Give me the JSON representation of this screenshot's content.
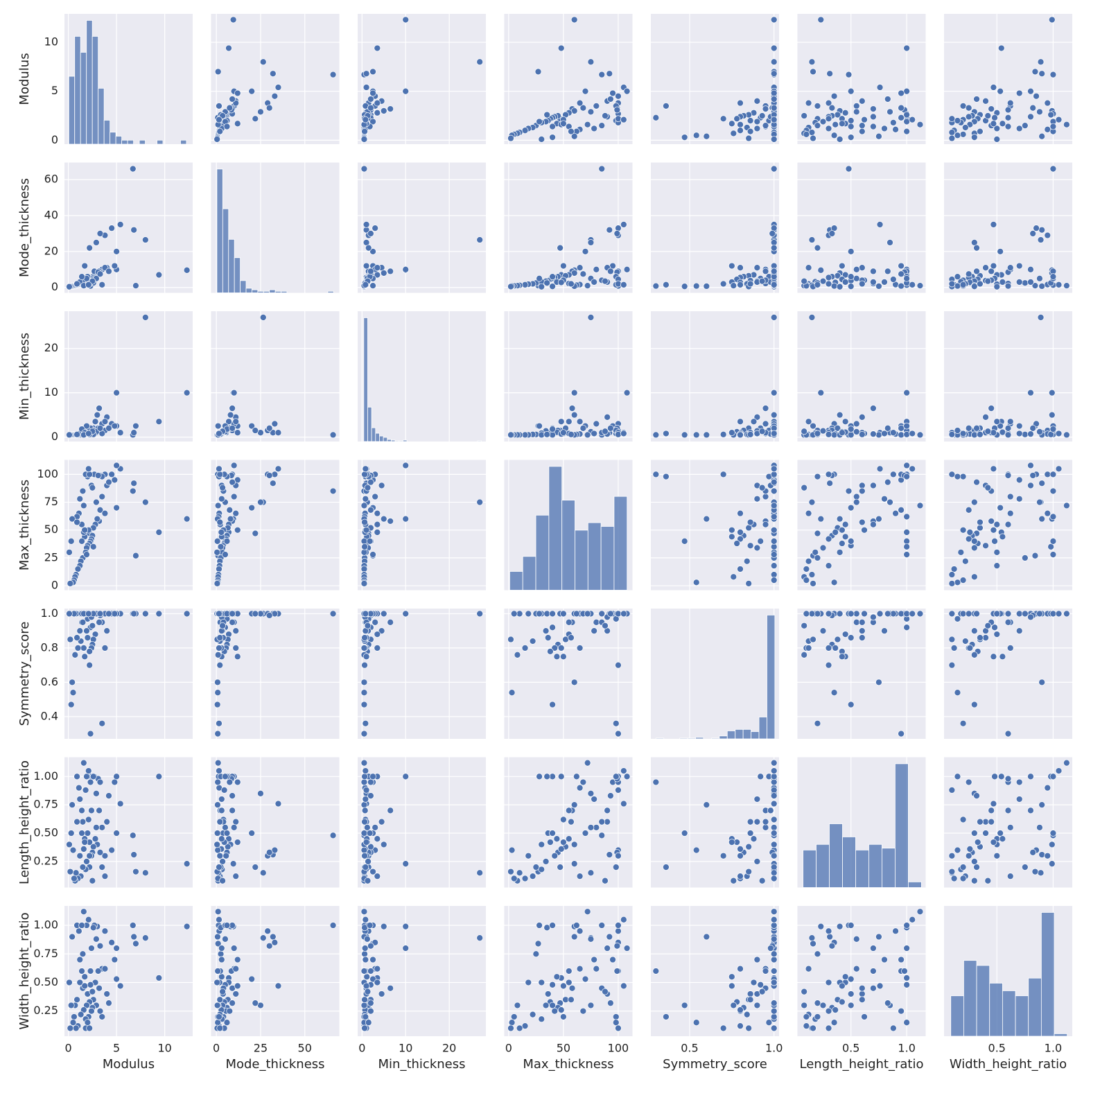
{
  "chart_data": {
    "type": "pairplot",
    "color": "#4c72b0",
    "variables": [
      {
        "name": "Modulus",
        "lim": [
          -0.4,
          12.9
        ],
        "xticks": [
          0,
          5,
          10
        ],
        "yticks": [
          0,
          5,
          10
        ],
        "bins": [
          0.05,
          0.66,
          1.27,
          1.88,
          2.49,
          3.1,
          3.71,
          4.32,
          4.93,
          5.54,
          6.15,
          6.76,
          7.37,
          7.98,
          8.59,
          9.2,
          9.81,
          10.42,
          11.03,
          11.64,
          12.25
        ],
        "counts": [
          17,
          27,
          23,
          31,
          27,
          14,
          6,
          3,
          2,
          1,
          1,
          0,
          1,
          0,
          0,
          1,
          0,
          0,
          0,
          1
        ]
      },
      {
        "name": "Mode_thickness",
        "lim": [
          -3,
          69.5
        ],
        "xticks": [
          0,
          25,
          50
        ],
        "yticks": [
          0,
          20,
          40,
          60
        ],
        "bins": [
          0.3,
          3.6,
          6.9,
          10.2,
          13.5,
          16.8,
          20.1,
          23.4,
          26.7,
          30,
          33.3,
          36.6,
          39.9,
          43.2,
          46.5,
          49.8,
          53.1,
          56.4,
          59.7,
          63,
          66.3
        ],
        "counts": [
          81,
          55,
          35,
          23,
          8,
          3,
          2,
          1,
          1,
          2,
          1,
          1,
          0,
          0,
          0,
          0,
          0,
          0,
          0,
          1
        ]
      },
      {
        "name": "Min_thickness",
        "lim": [
          -1,
          28.4
        ],
        "xticks": [
          0,
          10,
          20
        ],
        "yticks": [
          0,
          10,
          20
        ],
        "bins": [
          0.4,
          1.3,
          2.2,
          3.1,
          4,
          4.9,
          5.8,
          6.7,
          7.6,
          8.5,
          9.4,
          10.3,
          11.2,
          12.1,
          13,
          13.9,
          14.8,
          15.7,
          16.6,
          17.5,
          18.4,
          19.3,
          20.2,
          21.1,
          22,
          22.9,
          23.8,
          24.7,
          25.6,
          26.5,
          27.4
        ],
        "counts": [
          180,
          50,
          20,
          12,
          8,
          6,
          3,
          2,
          1,
          1,
          2,
          0,
          0,
          0,
          0,
          0,
          0,
          0,
          0,
          0,
          0,
          0,
          0,
          0,
          0,
          0,
          0,
          0,
          0,
          1
        ]
      },
      {
        "name": "Max_thickness",
        "lim": [
          -4,
          113
        ],
        "xticks": [
          0,
          50,
          100
        ],
        "yticks": [
          0,
          25,
          50,
          75,
          100
        ],
        "bins": [
          1,
          12.9,
          24.8,
          36.7,
          48.6,
          60.5,
          72.4,
          84.3,
          96.2,
          108.1
        ],
        "counts": [
          5,
          9,
          20,
          33,
          24,
          16,
          18,
          17,
          25
        ]
      },
      {
        "name": "Symmetry_score",
        "lim": [
          0.27,
          1.03
        ],
        "xticks": [
          0.5,
          {
            "value": 1,
            "label": "1.0"
          }
        ],
        "yticks": [
          0.4,
          0.6,
          0.8,
          {
            "value": 1,
            "label": "1.0"
          }
        ],
        "bins": [
          0.3,
          0.347,
          0.394,
          0.441,
          0.488,
          0.535,
          0.582,
          0.629,
          0.676,
          0.723,
          0.77,
          0.817,
          0.864,
          0.911,
          0.958,
          1.005
        ],
        "counts": [
          1,
          0,
          0,
          1,
          1,
          2,
          0,
          1,
          4,
          11,
          13,
          13,
          10,
          30,
          170
        ]
      },
      {
        "name": "Length_height_ratio",
        "lim": [
          0.02,
          1.17
        ],
        "xticks": [
          0.5,
          {
            "value": 1,
            "label": "1.0"
          }
        ],
        "yticks": [
          0.25,
          {
            "value": 0.5,
            "label": "0.50"
          },
          0.75,
          {
            "value": 1,
            "label": "1.00"
          }
        ],
        "bins": [
          0.07,
          0.188,
          0.306,
          0.424,
          0.542,
          0.66,
          0.778,
          0.896,
          1.014,
          1.132
        ],
        "counts": [
          20,
          23,
          34,
          27,
          20,
          23,
          21,
          66,
          3
        ]
      },
      {
        "name": "Width_height_ratio",
        "lim": [
          0.03,
          1.17
        ],
        "xticks": [
          0.5,
          {
            "value": 1,
            "label": "1.0"
          }
        ],
        "yticks": [
          0.25,
          {
            "value": 0.5,
            "label": "0.50"
          },
          0.75,
          {
            "value": 1,
            "label": "1.00"
          }
        ],
        "bins": [
          0.09,
          0.205,
          0.32,
          0.435,
          0.55,
          0.665,
          0.78,
          0.895,
          1.01,
          1.125
        ],
        "counts": [
          16,
          30,
          28,
          21,
          18,
          16,
          23,
          49,
          1
        ]
      }
    ],
    "rows": [
      [
        12.3,
        9.6,
        10,
        60,
        1,
        0.23,
        0.99
      ],
      [
        6.7,
        66,
        0.5,
        85,
        1,
        0.48,
        1
      ],
      [
        8,
        26.5,
        27,
        75,
        1,
        0.15,
        0.89
      ],
      [
        9.4,
        7,
        3.5,
        48,
        1,
        1,
        0.54
      ],
      [
        7,
        1,
        2.5,
        27,
        1,
        0.16,
        0.84
      ],
      [
        6.8,
        32,
        1,
        92,
        1,
        0.31,
        0.9
      ],
      [
        5.4,
        35,
        1,
        105,
        1,
        0.76,
        0.47
      ],
      [
        5,
        10,
        10,
        108,
        1,
        1,
        0.8
      ],
      [
        5,
        20,
        2.5,
        70,
        1,
        0.5,
        0.53
      ],
      [
        4.5,
        33,
        3,
        100,
        1,
        0.35,
        0.85
      ],
      [
        3.8,
        29,
        1.5,
        100,
        1,
        0.3,
        0.95
      ],
      [
        3.3,
        30,
        2,
        99,
        0.99,
        0.33,
        0.82
      ],
      [
        2.9,
        25,
        1,
        75,
        1,
        0.85,
        0.3
      ],
      [
        2.2,
        22,
        1.5,
        47,
        1,
        0.2,
        0.32
      ],
      [
        4.8,
        12,
        2.5,
        95,
        1,
        0.95,
        0.7
      ],
      [
        4,
        11,
        4.5,
        90,
        0.9,
        0.6,
        0.4
      ],
      [
        3.5,
        10,
        3,
        80,
        0.95,
        0.55,
        0.62
      ],
      [
        3.2,
        9,
        6.5,
        58,
        0.95,
        0.7,
        0.45
      ],
      [
        3,
        8,
        5,
        60,
        1,
        0.4,
        0.99
      ],
      [
        2.8,
        7,
        3.5,
        55,
        0.88,
        0.45,
        0.5
      ],
      [
        2.6,
        6.5,
        2,
        52,
        0.85,
        0.38,
        0.35
      ],
      [
        2.5,
        6,
        1.5,
        45,
        0.82,
        0.33,
        0.28
      ],
      [
        2.4,
        5.5,
        1,
        42,
        0.8,
        0.3,
        0.25
      ],
      [
        2.3,
        5,
        2,
        40,
        0.92,
        1,
        0.48
      ],
      [
        2.2,
        4.5,
        1.2,
        38,
        0.78,
        0.42,
        0.33
      ],
      [
        2.1,
        4,
        0.8,
        50,
        1,
        0.62,
        0.2
      ],
      [
        2,
        3.8,
        1,
        36,
        0.86,
        0.5,
        0.4
      ],
      [
        1.9,
        3.5,
        1.4,
        34,
        0.9,
        0.25,
        0.3
      ],
      [
        1.8,
        3.2,
        0.9,
        30,
        1,
        0.18,
        0.18
      ],
      [
        1.7,
        3,
        1.1,
        44,
        0.75,
        0.45,
        0.55
      ],
      [
        1.6,
        2.8,
        0.7,
        48,
        0.8,
        0.36,
        0.26
      ],
      [
        1.5,
        2.5,
        0.6,
        25,
        1,
        0.2,
        0.75
      ],
      [
        1.4,
        2.2,
        0.8,
        55,
        0.95,
        0.7,
        0.6
      ],
      [
        1.3,
        2,
        0.6,
        22,
        0.84,
        0.12,
        0.22
      ],
      [
        1.2,
        1.8,
        0.5,
        18,
        1,
        0.3,
        0.5
      ],
      [
        1.1,
        1.6,
        0.7,
        65,
        1,
        0.9,
        0.95
      ],
      [
        1,
        1.5,
        0.5,
        15,
        0.8,
        0.1,
        0.12
      ],
      [
        0.9,
        1.3,
        0.6,
        62,
        1,
        1,
        1
      ],
      [
        0.8,
        1.2,
        0.5,
        10,
        1,
        0.15,
        0.1
      ],
      [
        0.7,
        1,
        0.5,
        8,
        0.76,
        0.08,
        0.3
      ],
      [
        0.6,
        0.9,
        0.5,
        5,
        1,
        0.1,
        0.2
      ],
      [
        0.5,
        0.8,
        0.5,
        3,
        0.54,
        0.35,
        0.15
      ],
      [
        0.4,
        0.7,
        0.5,
        60,
        0.6,
        0.75,
        0.9
      ],
      [
        0.3,
        0.6,
        0.5,
        40,
        0.47,
        0.5,
        0.3
      ],
      [
        0.2,
        0.5,
        0.5,
        2,
        0.85,
        0.16,
        0.1
      ],
      [
        0.1,
        0.4,
        0.5,
        30,
        1,
        0.4,
        0.5
      ],
      [
        2.3,
        0.8,
        0.5,
        100,
        0.3,
        0.95,
        0.6
      ],
      [
        3.5,
        1.5,
        0.8,
        98,
        0.36,
        0.2,
        0.2
      ],
      [
        2.7,
        9,
        1.5,
        100,
        1,
        1,
        1
      ],
      [
        3.1,
        8.5,
        2,
        99,
        1,
        0.98,
        0.6
      ],
      [
        2,
        6,
        1.5,
        98,
        0.97,
        1,
        0.15
      ],
      [
        1.8,
        4.5,
        1,
        100,
        1,
        0.88,
        0.1
      ],
      [
        2.4,
        3,
        0.7,
        90,
        0.98,
        0.7,
        0.8
      ],
      [
        1.5,
        4,
        1,
        85,
        0.95,
        0.6,
        0.45
      ],
      [
        2.9,
        5,
        1.2,
        75,
        1,
        0.55,
        0.88
      ],
      [
        3.3,
        7.5,
        2,
        68,
        1,
        0.95,
        0.25
      ],
      [
        1.2,
        3,
        0.8,
        78,
        0.9,
        0.8,
        0.7
      ],
      [
        2.6,
        2.5,
        0.6,
        35,
        1,
        1,
        0.98
      ],
      [
        1.9,
        5,
        2.5,
        28,
        1,
        1,
        1
      ],
      [
        1.4,
        6,
        1.8,
        40,
        1,
        0.5,
        1
      ],
      [
        2.2,
        2,
        0.6,
        100,
        0.7,
        0.3,
        0.1
      ],
      [
        3.8,
        11,
        3.5,
        65,
        0.8,
        0.12,
        0.62
      ],
      [
        1.7,
        12,
        1,
        50,
        0.75,
        0.42,
        0.47
      ],
      [
        0.9,
        2,
        0.6,
        57,
        0.86,
        0.6,
        0.35
      ],
      [
        2.5,
        3.5,
        1.3,
        88,
        0.93,
        0.08,
        0.42
      ],
      [
        4.2,
        9,
        2,
        93,
        1,
        0.83,
        0.32
      ],
      [
        1.6,
        1,
        0.5,
        72,
        1,
        1.12,
        1.12
      ],
      [
        2.1,
        1.5,
        0.8,
        105,
        1,
        1.05,
        1.05
      ]
    ]
  }
}
